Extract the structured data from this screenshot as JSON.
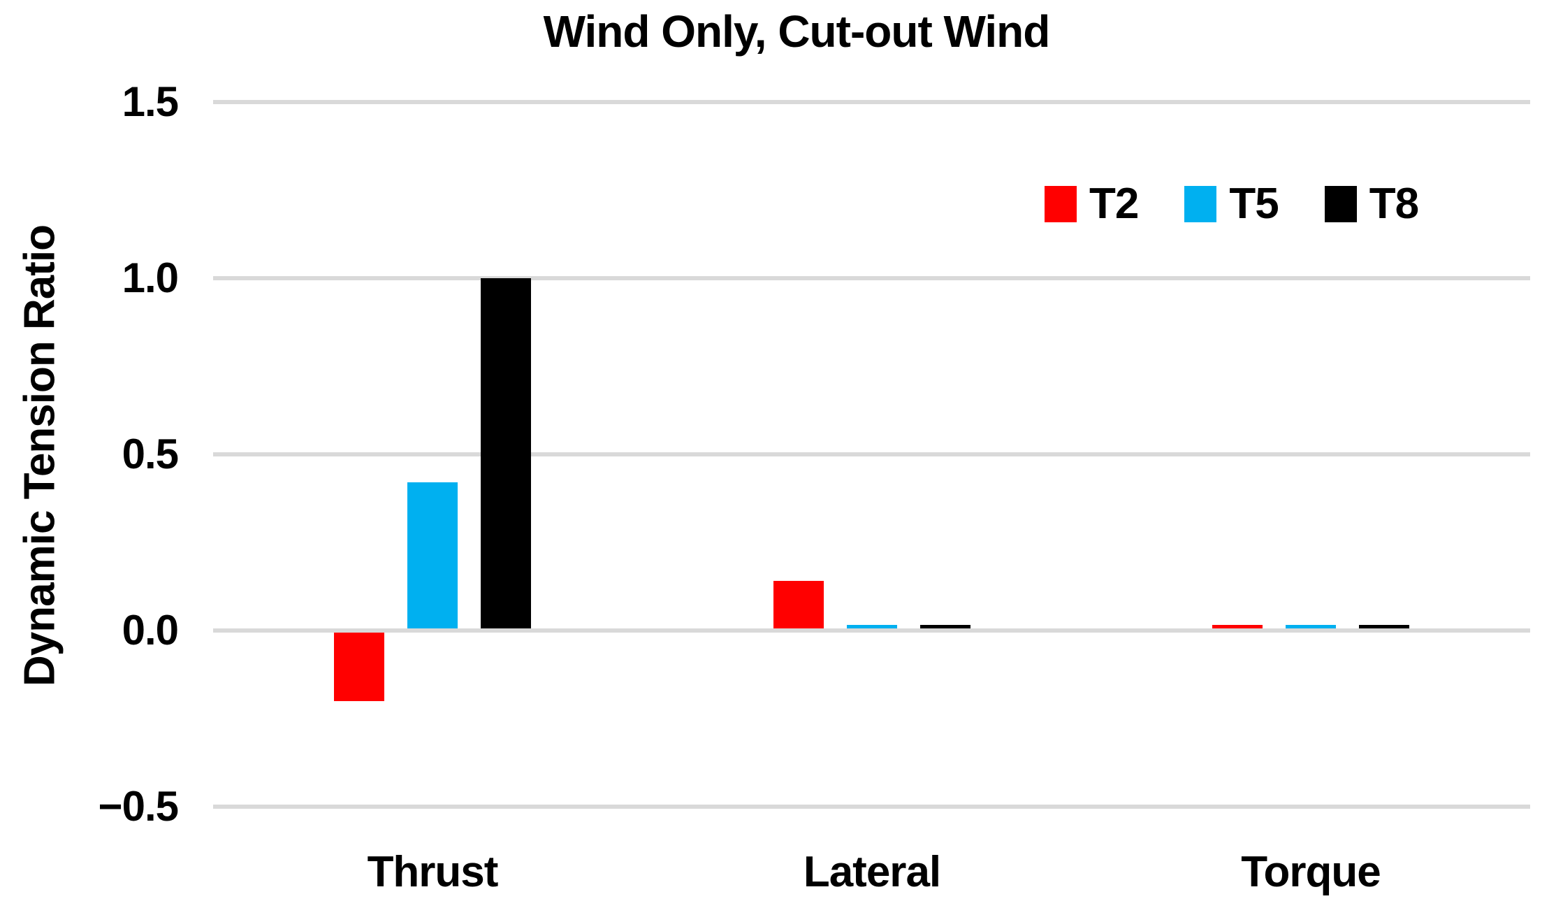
{
  "chart_data": {
    "type": "bar",
    "title": "Wind Only, Cut-out Wind",
    "xlabel": "",
    "ylabel": "Dynamic Tension Ratio",
    "categories": [
      "Thrust",
      "Lateral",
      "Torque"
    ],
    "series": [
      {
        "name": "T2",
        "color": "#FF0000",
        "values": [
          -0.2,
          0.14,
          0.01
        ]
      },
      {
        "name": "T5",
        "color": "#00B0F0",
        "values": [
          0.42,
          0.01,
          0.01
        ]
      },
      {
        "name": "T8",
        "color": "#000000",
        "values": [
          1.0,
          0.015,
          0.015
        ]
      }
    ],
    "ylim": [
      -0.5,
      1.5
    ],
    "yticks": [
      {
        "value": 1.5,
        "label": "1.5"
      },
      {
        "value": 1.0,
        "label": "1.0"
      },
      {
        "value": 0.5,
        "label": "0.5"
      },
      {
        "value": 0.0,
        "label": "0.0"
      },
      {
        "value": -0.5,
        "label": "−0.5"
      }
    ],
    "grid": "horizontal-only",
    "gridline_color": "#D9D9D9",
    "background": "#FFFFFF",
    "text_color": "#000000",
    "legend_position": "top-right-inside"
  }
}
